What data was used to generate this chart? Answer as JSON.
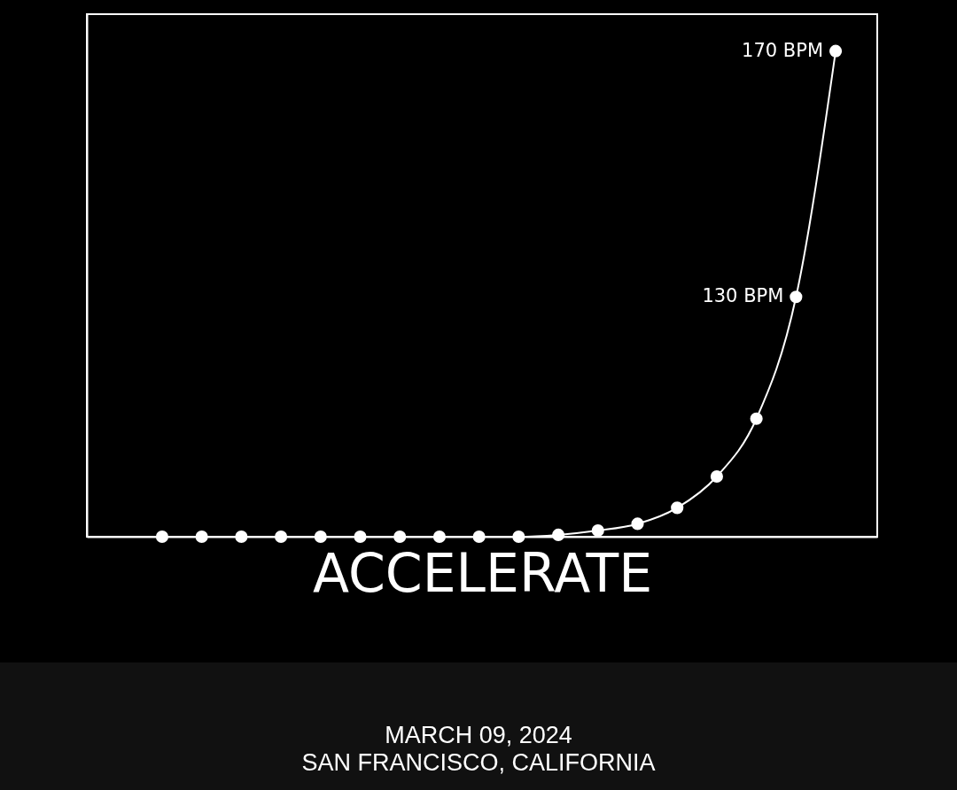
{
  "chart_data": {
    "type": "line",
    "xlabel": "ACCELERATE",
    "categories": [
      null,
      null,
      null,
      null,
      null,
      null,
      null,
      null,
      null,
      null,
      null,
      null,
      null,
      null,
      null,
      null,
      null,
      null
    ],
    "series": [
      {
        "color": "#ffffff",
        "values": [
          91,
          91,
          91,
          91,
          91,
          91,
          91,
          91,
          91,
          91,
          91.3,
          92,
          93.1,
          95.7,
          100.8,
          110.2,
          130,
          170
        ],
        "value_labels": [
          null,
          null,
          null,
          null,
          null,
          null,
          null,
          null,
          null,
          null,
          null,
          null,
          null,
          null,
          null,
          null,
          "130 BPM",
          "170 BPM"
        ]
      }
    ],
    "ylim": [
      91,
      176
    ],
    "tick_labels": false,
    "grid": false,
    "marker": "circle",
    "line_style": "solid",
    "annotations": [
      "MARCH 09, 2024",
      "SAN FRANCISCO, CALIFORNIA"
    ]
  }
}
